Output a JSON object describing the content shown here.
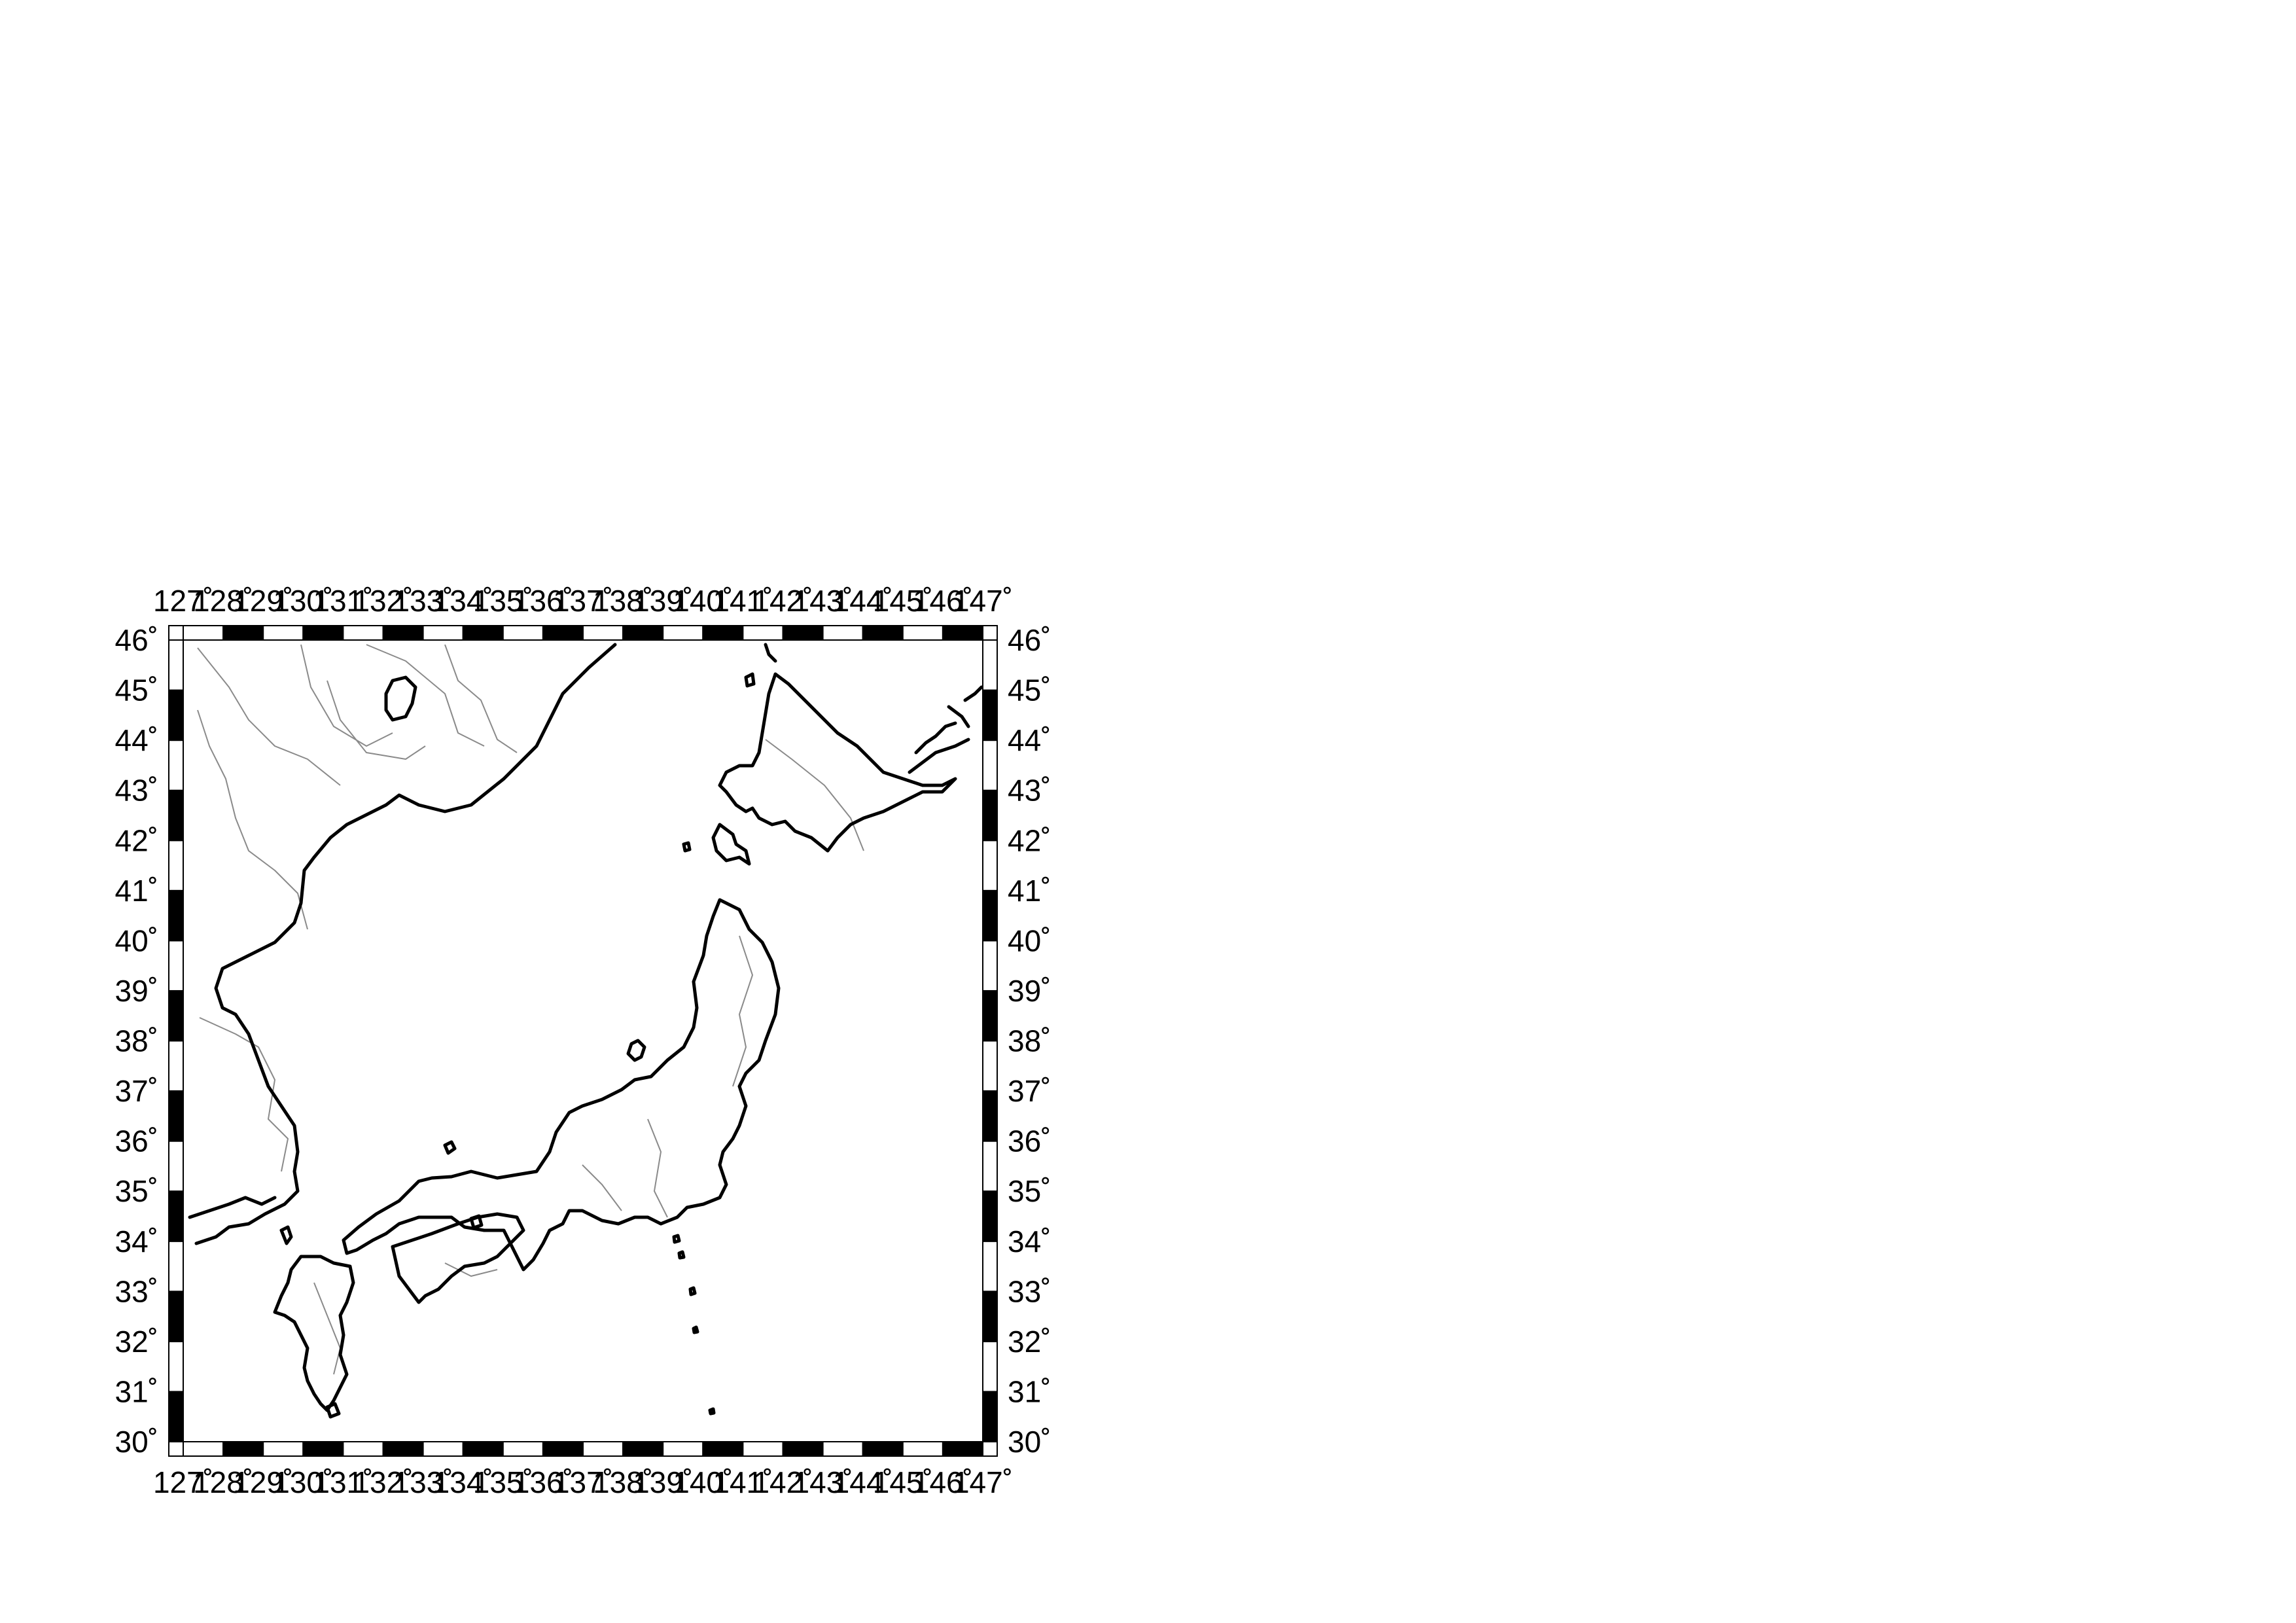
{
  "map": {
    "projection": "linear lon/lat",
    "extent": {
      "lon_min": 127,
      "lon_max": 147,
      "lat_min": 30,
      "lat_max": 46
    },
    "frame_style": "checkered black and white border",
    "colors": {
      "coast": "#000000",
      "borders": "#8a8a8a",
      "land": "#ffffff",
      "water": "#ffffff",
      "frame_dark": "#000000",
      "frame_light": "#ffffff"
    },
    "lon_labels": [
      "127˚",
      "128˚",
      "129˚",
      "130˚",
      "131˚",
      "132˚",
      "133˚",
      "134˚",
      "135˚",
      "136˚",
      "137˚",
      "138˚",
      "139˚",
      "140˚",
      "141˚",
      "142˚",
      "143˚",
      "144˚",
      "145˚",
      "146˚",
      "147˚"
    ],
    "lat_labels": [
      "30˚",
      "31˚",
      "32˚",
      "33˚",
      "34˚",
      "35˚",
      "36˚",
      "37˚",
      "38˚",
      "39˚",
      "40˚",
      "41˚",
      "42˚",
      "43˚",
      "44˚",
      "45˚",
      "46˚"
    ],
    "features": [
      "Japan coastline",
      "Korean peninsula coastline",
      "Sakhalin coastline",
      "Kuril islands",
      "national and regional boundaries"
    ]
  }
}
